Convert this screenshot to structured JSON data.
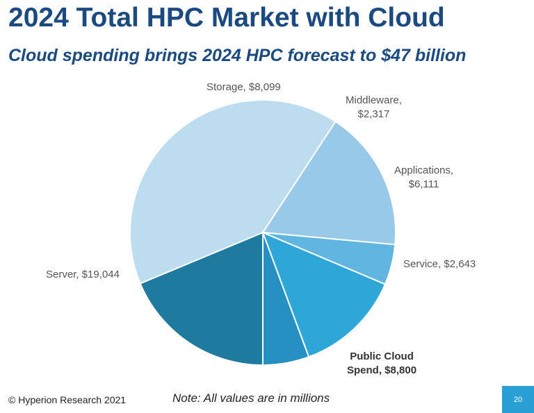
{
  "header": {
    "title": "2024 Total HPC Market with Cloud",
    "subtitle": "Cloud spending brings 2024 HPC forecast to $47 billion"
  },
  "chart_data": {
    "type": "pie",
    "unit": "millions",
    "slices": [
      {
        "name": "Public Cloud Spend",
        "value": 8800,
        "label_lines": [
          "Public Cloud",
          "Spend, $8,800"
        ],
        "color": "#1f7aa0",
        "bold": true
      },
      {
        "name": "Server",
        "value": 19044,
        "label_lines": [
          "Server, $19,044"
        ],
        "color": "#bddcf0",
        "bold": false
      },
      {
        "name": "Storage",
        "value": 8099,
        "label_lines": [
          "Storage, $8,099"
        ],
        "color": "#98c9e8",
        "bold": false
      },
      {
        "name": "Middleware",
        "value": 2317,
        "label_lines": [
          "Middleware,",
          "$2,317"
        ],
        "color": "#60b6e0",
        "bold": false
      },
      {
        "name": "Applications",
        "value": 6111,
        "label_lines": [
          "Applications,",
          "$6,111"
        ],
        "color": "#2ea6d8",
        "bold": false
      },
      {
        "name": "Service",
        "value": 2643,
        "label_lines": [
          "Service, $2,643"
        ],
        "color": "#2690c2",
        "bold": false
      }
    ]
  },
  "footer": {
    "copyright": "© Hyperion Research 2021",
    "note": "Note: All values are in millions",
    "page_number": "20"
  }
}
